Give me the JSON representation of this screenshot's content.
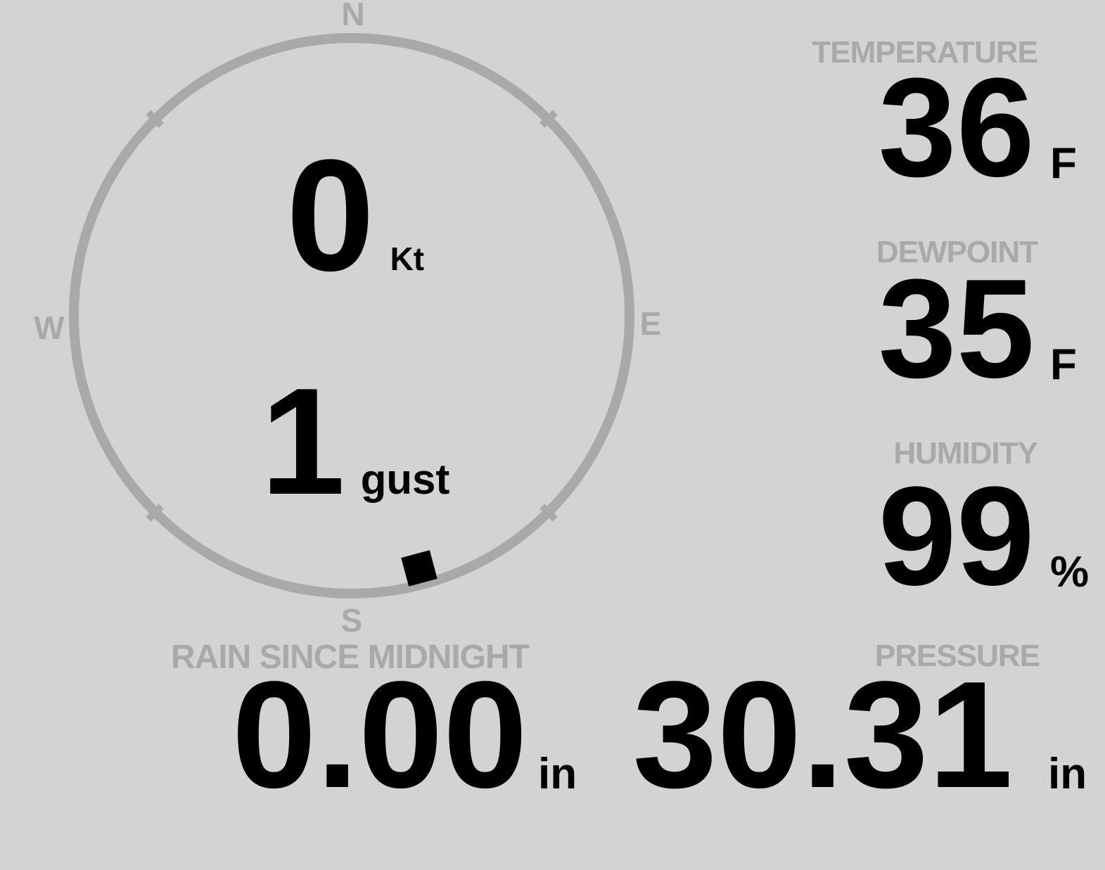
{
  "colors": {
    "background": "#d3d3d3",
    "muted_gray": "#a9a9a9",
    "value_ink": "#000000"
  },
  "compass": {
    "cardinals": {
      "north": "N",
      "east": "E",
      "south": "S",
      "west": "W"
    },
    "wind_speed": {
      "value": "0",
      "unit": "Kt"
    },
    "wind_gust": {
      "value": "1",
      "unit": "gust"
    },
    "wind_direction_marker": {
      "bearing_deg": 165
    }
  },
  "stats": {
    "temperature": {
      "label": "TEMPERATURE",
      "value": "36",
      "unit": "F"
    },
    "dewpoint": {
      "label": "DEWPOINT",
      "value": "35",
      "unit": "F"
    },
    "humidity": {
      "label": "HUMIDITY",
      "value": "99",
      "unit": "%"
    },
    "rain_since_midnight": {
      "label": "RAIN SINCE MIDNIGHT",
      "value": "0.00",
      "unit": "in"
    },
    "pressure": {
      "label": "PRESSURE",
      "value": "30.31",
      "unit": "in"
    }
  }
}
